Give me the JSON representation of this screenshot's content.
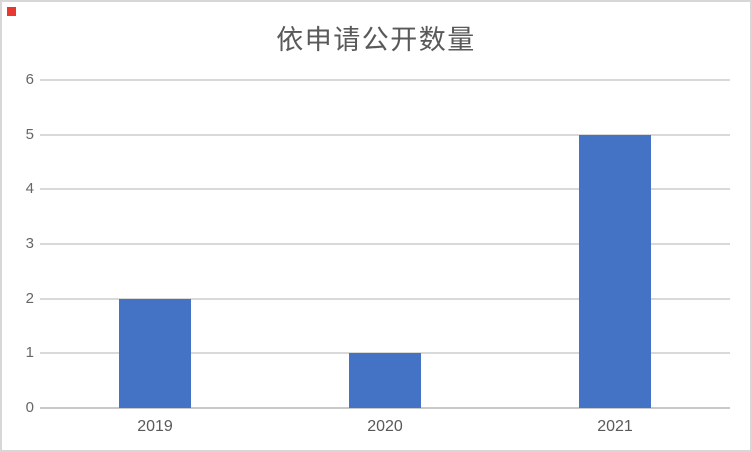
{
  "marker": {
    "color": "#e8382f"
  },
  "chart_data": {
    "type": "bar",
    "title": "依申请公开数量",
    "categories": [
      "2019",
      "2020",
      "2021"
    ],
    "values": [
      2,
      1,
      5
    ],
    "xlabel": "",
    "ylabel": "",
    "ylim": [
      0,
      6
    ],
    "yticks": [
      0,
      1,
      2,
      3,
      4,
      5,
      6
    ],
    "grid": "horizontal",
    "legend": "none",
    "bar_color": "#4472c4",
    "gridline_color": "#d9d9d9",
    "axis_line_color": "#c9c9c9",
    "title_color": "#595959",
    "tick_label_color": "#595959",
    "background_color": "#ffffff",
    "border_color": "#d7d7d7"
  }
}
